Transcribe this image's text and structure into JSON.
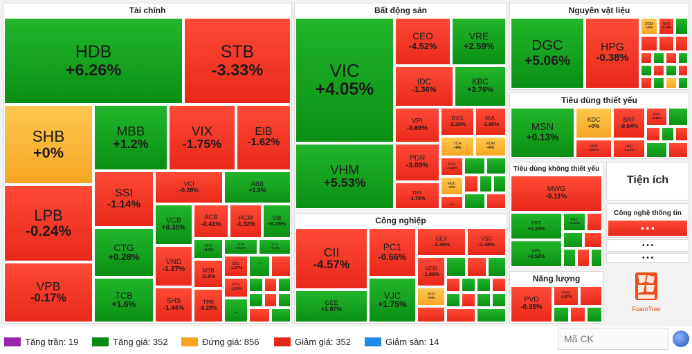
{
  "sectors": [
    {
      "id": "tai-chinh",
      "title": "Tài chính"
    },
    {
      "id": "bat-dong-san",
      "title": "Bất động sản"
    },
    {
      "id": "nguyen-vat-lieu",
      "title": "Nguyên vật liệu"
    },
    {
      "id": "cong-nghiep",
      "title": "Công nghiệp"
    },
    {
      "id": "tieu-dung-thiet-yeu",
      "title": "Tiêu dùng thiết yếu"
    },
    {
      "id": "tieu-dung-khong-thiet-yeu",
      "title": "Tiêu dùng không thiết yếu"
    },
    {
      "id": "nang-luong",
      "title": "Năng lượng"
    },
    {
      "id": "tien-ich",
      "title": "Tiện ích"
    },
    {
      "id": "cong-nghe",
      "title": "Công nghệ thông tin"
    }
  ],
  "tiles": [
    {
      "sym": "HDB",
      "chg": "+6.26%",
      "dir": "up"
    },
    {
      "sym": "STB",
      "chg": "-3.33%",
      "dir": "down"
    },
    {
      "sym": "SHB",
      "chg": "+0%",
      "dir": "flat"
    },
    {
      "sym": "MBB",
      "chg": "+1.2%",
      "dir": "up"
    },
    {
      "sym": "VIX",
      "chg": "-1.75%",
      "dir": "down"
    },
    {
      "sym": "EIB",
      "chg": "-1.62%",
      "dir": "down"
    },
    {
      "sym": "LPB",
      "chg": "-0.24%",
      "dir": "down"
    },
    {
      "sym": "SSI",
      "chg": "-1.14%",
      "dir": "down"
    },
    {
      "sym": "VCI",
      "chg": "-0.28%",
      "dir": "down"
    },
    {
      "sym": "ABB",
      "chg": "+1.9%",
      "dir": "up"
    },
    {
      "sym": "VCB",
      "chg": "+0.35%",
      "dir": "up"
    },
    {
      "sym": "ACB",
      "chg": "-0.41%",
      "dir": "down"
    },
    {
      "sym": "HCM",
      "chg": "-1.32%",
      "dir": "down"
    },
    {
      "sym": "VIB",
      "chg": "+0.28%",
      "dir": "up"
    },
    {
      "sym": "CTG",
      "chg": "+0.28%",
      "dir": "up"
    },
    {
      "sym": "VPX",
      "chg": "+4.2%",
      "dir": "up"
    },
    {
      "sym": "VCK",
      "chg": "+0.8%",
      "dir": "up"
    },
    {
      "sym": "TCX",
      "chg": "+0.7%",
      "dir": "up"
    },
    {
      "sym": "VPB",
      "chg": "-0.17%",
      "dir": "down"
    },
    {
      "sym": "VND",
      "chg": "-1.27%",
      "dir": "down"
    },
    {
      "sym": "MSB",
      "chg": "-0.8%",
      "dir": "down"
    },
    {
      "sym": "BID",
      "chg": "-1.27%",
      "dir": "down"
    },
    {
      "sym": "FTS",
      "chg": "-1.85%",
      "dir": "down"
    },
    {
      "sym": "TCB",
      "chg": "+1.6%",
      "dir": "up"
    },
    {
      "sym": "SHS",
      "chg": "-1.44%",
      "dir": "down"
    },
    {
      "sym": "TPB",
      "chg": "-0.29%",
      "dir": "down"
    },
    {
      "sym": "VIC",
      "chg": "+4.05%",
      "dir": "up"
    },
    {
      "sym": "CEO",
      "chg": "-4.52%",
      "dir": "down"
    },
    {
      "sym": "VRE",
      "chg": "+2.59%",
      "dir": "up"
    },
    {
      "sym": "IDC",
      "chg": "-1.36%",
      "dir": "down"
    },
    {
      "sym": "KBC",
      "chg": "+2.76%",
      "dir": "up"
    },
    {
      "sym": "VPI",
      "chg": "-0.69%",
      "dir": "down"
    },
    {
      "sym": "DXG",
      "chg": "-2.29%",
      "dir": "down"
    },
    {
      "sym": "NVL",
      "chg": "-3.96%",
      "dir": "down"
    },
    {
      "sym": "TCH",
      "chg": "+0%",
      "dir": "flat"
    },
    {
      "sym": "KDH",
      "chg": "+0%",
      "dir": "flat"
    },
    {
      "sym": "VHM",
      "chg": "+5.53%",
      "dir": "up"
    },
    {
      "sym": "PDR",
      "chg": "-3.09%",
      "dir": "down"
    },
    {
      "sym": "KHG",
      "chg": "-2.14%",
      "dir": "down"
    },
    {
      "sym": "HDC",
      "chg": "+0%",
      "dir": "flat"
    },
    {
      "sym": "DIG",
      "chg": "-1.76%",
      "dir": "down"
    },
    {
      "sym": "DGC",
      "chg": "+5.06%",
      "dir": "up"
    },
    {
      "sym": "HPG",
      "chg": "-0.38%",
      "dir": "down"
    },
    {
      "sym": "DCM",
      "chg": "+0%",
      "dir": "flat"
    },
    {
      "sym": "NKG",
      "chg": "-0.79%",
      "dir": "down"
    },
    {
      "sym": "MSN",
      "chg": "+0.13%",
      "dir": "up"
    },
    {
      "sym": "KDC",
      "chg": "+0%",
      "dir": "flat"
    },
    {
      "sym": "BAF",
      "chg": "-0.54%",
      "dir": "down"
    },
    {
      "sym": "DBC",
      "chg": "-1.46%",
      "dir": "down"
    },
    {
      "sym": "VNM",
      "chg": "-0.97%",
      "dir": "down"
    },
    {
      "sym": "HAG",
      "chg": "-1.13%",
      "dir": "down"
    },
    {
      "sym": "MWG",
      "chg": "-0.11%",
      "dir": "down"
    },
    {
      "sym": "FRT",
      "chg": "+1.22%",
      "dir": "up"
    },
    {
      "sym": "PET",
      "chg": "+2.64%",
      "dir": "up"
    },
    {
      "sym": "VPL",
      "chg": "+3.52%",
      "dir": "up"
    },
    {
      "sym": "PVD",
      "chg": "-0.35%",
      "dir": "down"
    },
    {
      "sym": "PVS",
      "chg": "-0.87%",
      "dir": "down"
    },
    {
      "sym": "CII",
      "chg": "-4.57%",
      "dir": "down"
    },
    {
      "sym": "PC1",
      "chg": "-0.66%",
      "dir": "down"
    },
    {
      "sym": "GEX",
      "chg": "-1.36%",
      "dir": "down"
    },
    {
      "sym": "VSC",
      "chg": "-1.48%",
      "dir": "down"
    },
    {
      "sym": "VCG",
      "chg": "-1.09%",
      "dir": "down"
    },
    {
      "sym": "DCP",
      "chg": "+0%",
      "dir": "flat"
    },
    {
      "sym": "GEE",
      "chg": "+1.87%",
      "dir": "up"
    },
    {
      "sym": "VJC",
      "chg": "+1.75%",
      "dir": "up"
    }
  ],
  "more_label": "...",
  "tien_ich_more_label": "• • •",
  "cong_nghe_more_label": "• • •",
  "foamtree_label": "FoamTree",
  "legend": [
    {
      "label": "Tăng trần: 19",
      "color": "#9b27af"
    },
    {
      "label": "Tăng giá: 352",
      "color": "#0b8a13"
    },
    {
      "label": "Đứng giá: 856",
      "color": "#f6a623"
    },
    {
      "label": "Giảm giá: 352",
      "color": "#e3281b"
    },
    {
      "label": "Giảm sàn: 14",
      "color": "#1e88e5"
    }
  ],
  "search": {
    "placeholder": "Mã CK"
  },
  "colors": {
    "up": "#0a8f14",
    "down": "#e8281a",
    "flat": "#f6a623"
  }
}
